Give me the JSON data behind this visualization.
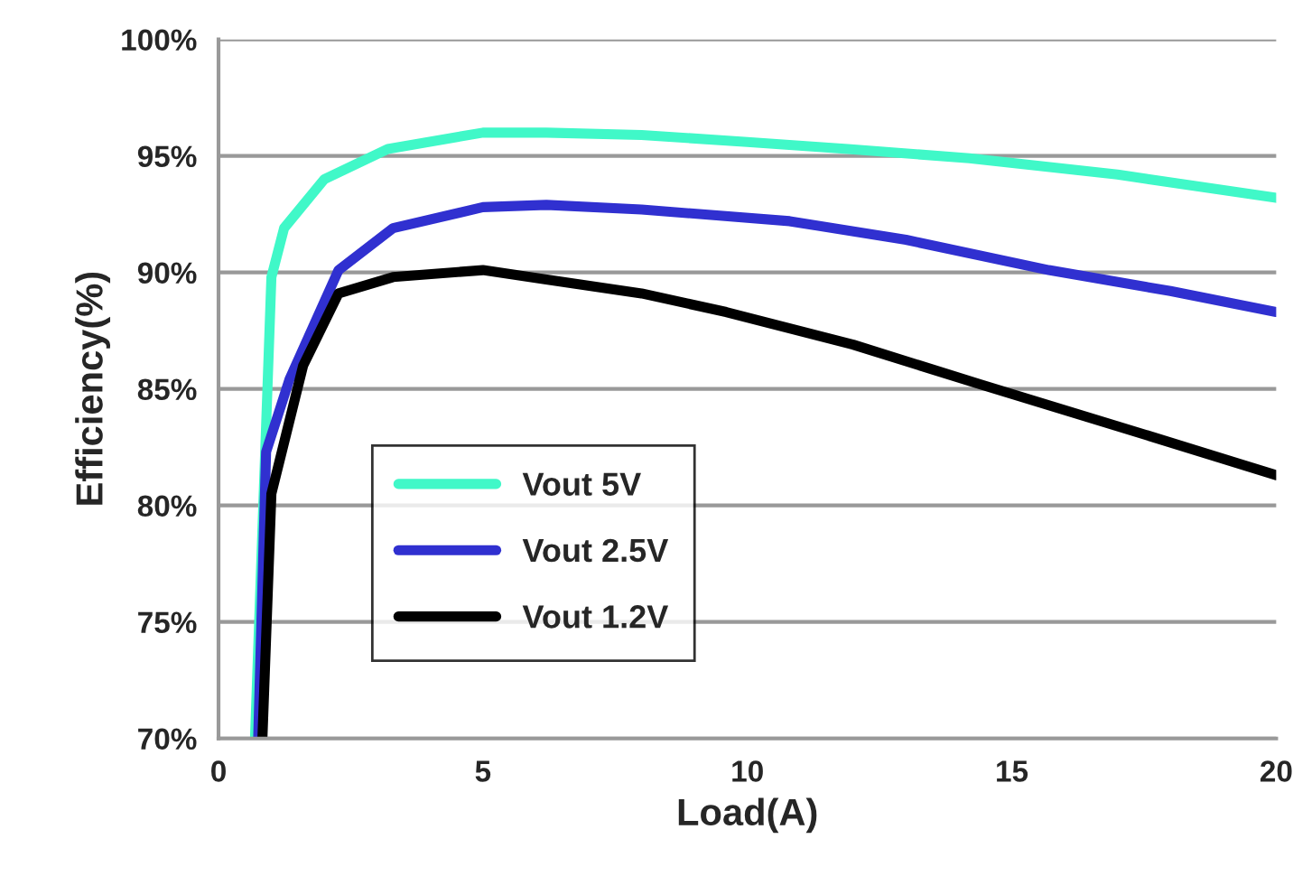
{
  "chart_data": {
    "type": "line",
    "xlabel": "Load(A)",
    "ylabel": "Efficiency(%)",
    "xlim": [
      0,
      20
    ],
    "xticks": [
      0,
      5,
      10,
      15,
      {
        "value": 20,
        "label": "20"
      }
    ],
    "ylim": [
      70,
      100
    ],
    "yticks": [
      {
        "value": 70,
        "label": "70%"
      },
      {
        "value": 75,
        "label": "75%"
      },
      {
        "value": 80,
        "label": "80%"
      },
      {
        "value": 85,
        "label": "85%"
      },
      {
        "value": 90,
        "label": "90%"
      },
      {
        "value": 95,
        "label": "95%"
      },
      {
        "value": 100,
        "label": "100%"
      }
    ],
    "grid": "y",
    "legend": "left",
    "marker": "none",
    "line_style": "solid",
    "series": [
      {
        "name": "Vout 5V",
        "color": "#40f8c8",
        "x": [
          0.69,
          1.0,
          1.24,
          2.0,
          3.2,
          5.0,
          6.2,
          8.0,
          10.0,
          11.9,
          14.2,
          17.0,
          20.0
        ],
        "values": [
          70.0,
          89.8,
          91.9,
          94.0,
          95.3,
          96.0,
          96.0,
          95.9,
          95.6,
          95.3,
          94.9,
          94.2,
          93.2
        ]
      },
      {
        "name": "Vout 2.5V",
        "color": "#3030d0",
        "x": [
          0.75,
          0.9,
          1.34,
          2.27,
          3.3,
          5.0,
          6.2,
          8.0,
          10.8,
          13.0,
          15.7,
          18.0,
          20.0
        ],
        "values": [
          70.0,
          82.3,
          85.4,
          90.1,
          91.9,
          92.8,
          92.9,
          92.7,
          92.2,
          91.4,
          90.1,
          89.2,
          88.3
        ]
      },
      {
        "name": "Vout 1.2V",
        "color": "#000000",
        "x": [
          0.83,
          1.0,
          1.6,
          2.27,
          3.3,
          5.0,
          6.2,
          8.0,
          9.6,
          12.0,
          14.4,
          17.0,
          20.0
        ],
        "values": [
          70.0,
          80.5,
          86.0,
          89.1,
          89.8,
          90.1,
          89.7,
          89.1,
          88.3,
          86.9,
          85.2,
          83.4,
          81.3
        ]
      }
    ]
  }
}
